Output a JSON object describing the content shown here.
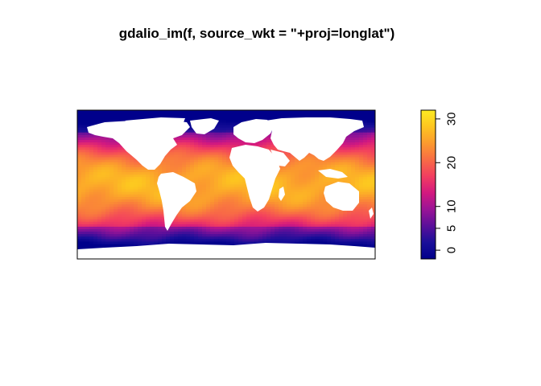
{
  "chart_data": {
    "type": "heatmap",
    "title": "gdalio_im(f, source_wkt = \"+proj=longlat\")",
    "xlabel": "",
    "ylabel": "",
    "xlim": [
      -180,
      180
    ],
    "ylim": [
      -90,
      90
    ],
    "axes_shown": false,
    "grid": false,
    "legend": "colorbar-right",
    "colorbar": {
      "ticks": [
        0,
        5,
        10,
        20,
        30
      ],
      "tick_labels": [
        "0",
        "5",
        "10",
        "20",
        "30"
      ],
      "range": [
        -2,
        32
      ],
      "colors": [
        "#00008B",
        "#1A0F99",
        "#5A0F9A",
        "#9A1496",
        "#D3197F",
        "#F23D60",
        "#F86C45",
        "#FB9A2E",
        "#FDC520",
        "#FCEB22"
      ]
    },
    "land_color": "#FFFFFF"
  }
}
